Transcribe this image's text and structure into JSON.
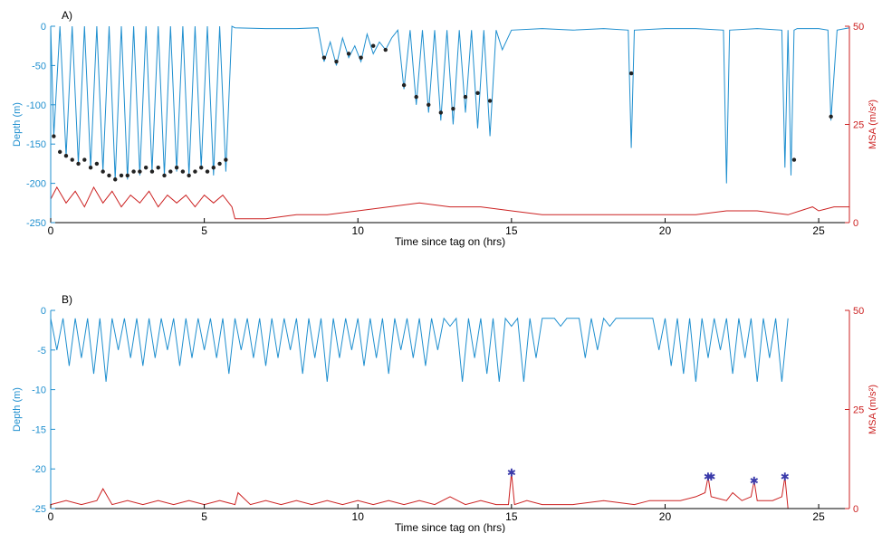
{
  "colors": {
    "depth": "#1f8fcf",
    "msa": "#cc2222",
    "dot": "#222222",
    "star": "#3a3aaa",
    "axis": "#000000"
  },
  "chart_data": [
    {
      "panel_label": "A)",
      "type": "line",
      "xlabel": "Time since tag on (hrs)",
      "ylabel_left": "Depth (m)",
      "ylabel_right": "MSA (m/s²)",
      "xlim": [
        0,
        26
      ],
      "ylim_left": [
        -250,
        0
      ],
      "ylim_right": [
        0,
        50
      ],
      "x_ticks": [
        0,
        5,
        10,
        15,
        20,
        25
      ],
      "y_ticks_left": [
        0,
        -50,
        -100,
        -150,
        -200,
        -250
      ],
      "y_ticks_right": [
        0,
        25,
        50
      ],
      "series": [
        {
          "name": "",
          "axis": "left",
          "kind": "line",
          "x": [
            0.0,
            0.1,
            0.3,
            0.5,
            0.7,
            0.9,
            1.1,
            1.3,
            1.5,
            1.7,
            1.9,
            2.1,
            2.3,
            2.5,
            2.7,
            2.9,
            3.1,
            3.3,
            3.5,
            3.7,
            3.9,
            4.1,
            4.3,
            4.5,
            4.7,
            4.9,
            5.1,
            5.3,
            5.5,
            5.7,
            5.9,
            6.0,
            7.0,
            8.0,
            8.7,
            8.9,
            9.1,
            9.3,
            9.5,
            9.7,
            9.9,
            10.1,
            10.3,
            10.5,
            10.7,
            10.9,
            11.1,
            11.3,
            11.5,
            11.7,
            11.9,
            12.1,
            12.3,
            12.5,
            12.7,
            12.9,
            13.1,
            13.3,
            13.5,
            13.7,
            13.9,
            14.1,
            14.3,
            14.5,
            14.7,
            15.0,
            16.0,
            17.0,
            18.0,
            18.8,
            18.9,
            19.0,
            20.0,
            21.0,
            21.9,
            22.0,
            22.1,
            23.0,
            23.8,
            23.9,
            24.0,
            24.1,
            24.2,
            24.3,
            25.0,
            25.3,
            25.4,
            25.6,
            26.0
          ],
          "y": [
            0,
            -140,
            0,
            -165,
            0,
            -175,
            0,
            -180,
            0,
            -185,
            0,
            -195,
            0,
            -195,
            0,
            -190,
            0,
            -185,
            0,
            -190,
            0,
            -185,
            0,
            -190,
            0,
            -180,
            0,
            -190,
            0,
            -185,
            0,
            -2,
            -3,
            -3,
            -2,
            -45,
            -20,
            -50,
            -15,
            -40,
            -25,
            -45,
            -10,
            -35,
            -20,
            -30,
            -15,
            -5,
            -80,
            -5,
            -100,
            -5,
            -110,
            -5,
            -120,
            -5,
            -125,
            -5,
            -110,
            -5,
            -130,
            -5,
            -140,
            -5,
            -30,
            -5,
            -3,
            -5,
            -3,
            -5,
            -155,
            -5,
            -3,
            -3,
            -5,
            -200,
            -5,
            -3,
            -5,
            -180,
            -5,
            -190,
            -5,
            -3,
            -3,
            -5,
            -120,
            -5,
            -2
          ]
        },
        {
          "name": "",
          "axis": "right",
          "kind": "line",
          "x": [
            0.0,
            0.2,
            0.5,
            0.8,
            1.1,
            1.4,
            1.7,
            2.0,
            2.3,
            2.6,
            2.9,
            3.2,
            3.5,
            3.8,
            4.1,
            4.4,
            4.7,
            5.0,
            5.3,
            5.6,
            5.9,
            6.0,
            7.0,
            8.0,
            9.0,
            10.0,
            11.0,
            12.0,
            13.0,
            14.0,
            15.0,
            16.0,
            17.0,
            18.0,
            19.0,
            20.0,
            21.0,
            22.0,
            23.0,
            24.0,
            24.8,
            25.0,
            25.5,
            26.0
          ],
          "y": [
            6,
            9,
            5,
            8,
            4,
            9,
            5,
            8,
            4,
            7,
            5,
            8,
            4,
            7,
            5,
            7,
            4,
            7,
            5,
            7,
            4,
            1,
            1,
            2,
            2,
            3,
            4,
            5,
            4,
            4,
            3,
            2,
            2,
            2,
            2,
            2,
            2,
            3,
            3,
            2,
            4,
            3,
            4,
            4
          ]
        },
        {
          "name": "",
          "axis": "left",
          "kind": "dots",
          "x": [
            0.1,
            0.3,
            0.5,
            0.7,
            0.9,
            1.1,
            1.3,
            1.5,
            1.7,
            1.9,
            2.1,
            2.3,
            2.5,
            2.7,
            2.9,
            3.1,
            3.3,
            3.5,
            3.7,
            3.9,
            4.1,
            4.3,
            4.5,
            4.7,
            4.9,
            5.1,
            5.3,
            5.5,
            5.7,
            8.9,
            9.3,
            9.7,
            10.1,
            10.5,
            10.9,
            11.5,
            11.9,
            12.3,
            12.7,
            13.1,
            13.5,
            13.9,
            14.3,
            18.9,
            24.2,
            25.4
          ],
          "y": [
            -140,
            -160,
            -165,
            -170,
            -175,
            -170,
            -180,
            -175,
            -185,
            -190,
            -195,
            -190,
            -190,
            -185,
            -185,
            -180,
            -185,
            -180,
            -190,
            -185,
            -180,
            -185,
            -190,
            -185,
            -180,
            -185,
            -180,
            -175,
            -170,
            -40,
            -45,
            -35,
            -40,
            -25,
            -30,
            -75,
            -90,
            -100,
            -110,
            -105,
            -90,
            -85,
            -95,
            -60,
            -170,
            -115
          ]
        }
      ]
    },
    {
      "panel_label": "B)",
      "type": "line",
      "xlabel": "Time since tag on (hrs)",
      "ylabel_left": "Depth (m)",
      "ylabel_right": "MSA (m/s²)",
      "xlim": [
        0,
        26
      ],
      "ylim_left": [
        -25,
        0
      ],
      "ylim_right": [
        0,
        50
      ],
      "x_ticks": [
        0,
        5,
        10,
        15,
        20,
        25
      ],
      "y_ticks_left": [
        0,
        -5,
        -10,
        -15,
        -20,
        -25
      ],
      "y_ticks_right": [
        0,
        25,
        50
      ],
      "series": [
        {
          "name": "",
          "axis": "left",
          "kind": "line",
          "x": [
            0.0,
            0.2,
            0.4,
            0.6,
            0.8,
            1.0,
            1.2,
            1.4,
            1.6,
            1.8,
            2.0,
            2.2,
            2.4,
            2.6,
            2.8,
            3.0,
            3.2,
            3.4,
            3.6,
            3.8,
            4.0,
            4.2,
            4.4,
            4.6,
            4.8,
            5.0,
            5.2,
            5.4,
            5.6,
            5.8,
            6.0,
            6.2,
            6.4,
            6.6,
            6.8,
            7.0,
            7.2,
            7.4,
            7.6,
            7.8,
            8.0,
            8.2,
            8.4,
            8.6,
            8.8,
            9.0,
            9.2,
            9.4,
            9.6,
            9.8,
            10.0,
            10.2,
            10.4,
            10.6,
            10.8,
            11.0,
            11.2,
            11.4,
            11.6,
            11.8,
            12.0,
            12.2,
            12.4,
            12.6,
            12.8,
            13.0,
            13.2,
            13.4,
            13.6,
            13.8,
            14.0,
            14.2,
            14.4,
            14.6,
            14.8,
            15.0,
            15.2,
            15.4,
            15.6,
            15.8,
            16.0,
            16.2,
            16.4,
            16.6,
            16.8,
            17.0,
            17.2,
            17.4,
            17.6,
            17.8,
            18.0,
            18.2,
            18.4,
            18.6,
            18.8,
            19.0,
            19.2,
            19.4,
            19.6,
            19.8,
            20.0,
            20.2,
            20.4,
            20.6,
            20.8,
            21.0,
            21.2,
            21.4,
            21.6,
            21.8,
            22.0,
            22.2,
            22.4,
            22.6,
            22.8,
            23.0,
            23.2,
            23.4,
            23.6,
            23.8,
            24.0
          ],
          "y": [
            -1,
            -5,
            -1,
            -7,
            -1,
            -6,
            -1,
            -8,
            -1,
            -9,
            -1,
            -5,
            -1,
            -6,
            -1,
            -7,
            -1,
            -6,
            -1,
            -5,
            -1,
            -7,
            -1,
            -6,
            -1,
            -5,
            -1,
            -6,
            -1,
            -8,
            -1,
            -5,
            -1,
            -6,
            -1,
            -7,
            -1,
            -6,
            -1,
            -5,
            -1,
            -8,
            -1,
            -6,
            -1,
            -9,
            -1,
            -6,
            -1,
            -5,
            -1,
            -7,
            -1,
            -6,
            -1,
            -8,
            -1,
            -5,
            -1,
            -6,
            -1,
            -7,
            -1,
            -5,
            -1,
            -2,
            -1,
            -9,
            -1,
            -6,
            -1,
            -8,
            -1,
            -9,
            -1,
            -2,
            -1,
            -9,
            -1,
            -6,
            -1,
            -1,
            -1,
            -2,
            -1,
            -1,
            -1,
            -6,
            -1,
            -5,
            -1,
            -2,
            -1,
            -1,
            -1,
            -1,
            -1,
            -1,
            -1,
            -5,
            -1,
            -7,
            -1,
            -8,
            -1,
            -9,
            -1,
            -6,
            -1,
            -5,
            -1,
            -8,
            -1,
            -6,
            -1,
            -9,
            -1,
            -6,
            -1,
            -9,
            -1
          ]
        },
        {
          "name": "",
          "axis": "right",
          "kind": "line",
          "x": [
            0.0,
            0.5,
            1.0,
            1.5,
            1.7,
            2.0,
            2.5,
            3.0,
            3.5,
            4.0,
            4.5,
            5.0,
            5.5,
            6.0,
            6.1,
            6.5,
            7.0,
            7.5,
            8.0,
            8.5,
            9.0,
            9.5,
            10.0,
            10.5,
            11.0,
            11.5,
            12.0,
            12.5,
            13.0,
            13.5,
            14.0,
            14.5,
            14.9,
            15.0,
            15.1,
            15.5,
            16.0,
            17.0,
            18.0,
            19.0,
            19.5,
            20.0,
            20.5,
            21.0,
            21.3,
            21.4,
            21.5,
            22.0,
            22.2,
            22.5,
            22.8,
            22.9,
            23.0,
            23.5,
            23.8,
            23.9,
            24.0
          ],
          "y": [
            1,
            2,
            1,
            2,
            5,
            1,
            2,
            1,
            2,
            1,
            2,
            1,
            2,
            1,
            4,
            1,
            2,
            1,
            2,
            1,
            2,
            1,
            2,
            1,
            2,
            1,
            2,
            1,
            3,
            1,
            2,
            1,
            1,
            9,
            1,
            2,
            1,
            1,
            2,
            1,
            2,
            2,
            2,
            3,
            4,
            8,
            3,
            2,
            4,
            2,
            3,
            7,
            2,
            2,
            3,
            8,
            0
          ]
        },
        {
          "name": "",
          "axis": "right",
          "kind": "stars",
          "x": [
            15.0,
            21.4,
            21.5,
            22.9,
            23.9
          ],
          "y": [
            9,
            8,
            8,
            7,
            8
          ]
        }
      ]
    }
  ]
}
